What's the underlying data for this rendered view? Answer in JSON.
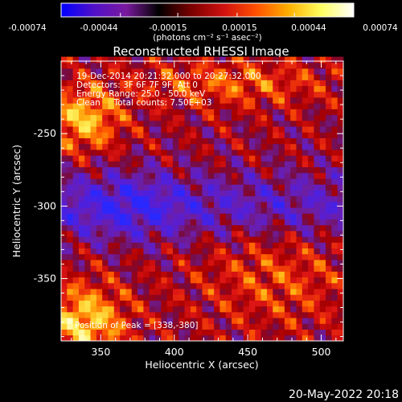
{
  "colorbar": {
    "tick_labels": [
      "-0.00074",
      "-0.00044",
      "-0.00015",
      "0.00015",
      "0.00044",
      "0.00074"
    ],
    "tick_values": [
      -0.00074,
      -0.00044,
      -0.00015,
      0.00015,
      0.00044,
      0.00074
    ],
    "range": [
      -0.00074,
      0.00074
    ],
    "unit_label": "(photons cm⁻² s⁻¹ asec⁻²)",
    "colors": [
      "#0000ff",
      "#5010c8",
      "#7a1a9e",
      "#000000",
      "#7a0000",
      "#d01010",
      "#ff5000",
      "#ffb000",
      "#ffff60",
      "#ffffff"
    ]
  },
  "chart_data": {
    "type": "heatmap",
    "title": "Reconstructed RHESSI Image",
    "xlabel": "Heliocentric X (arcsec)",
    "ylabel": "Heliocentric Y (arcsec)",
    "xlim": [
      323,
      515
    ],
    "ylim": [
      -393,
      -200
    ],
    "x_ticks": [
      350,
      400,
      450,
      500
    ],
    "y_ticks": [
      -250,
      -300,
      -350
    ],
    "x_tick_labels": [
      "350",
      "400",
      "450",
      "500"
    ],
    "y_tick_labels": [
      "-250",
      "-300",
      "-350"
    ],
    "annotations": [
      "19-Dec-2014 20:21:32.000 to 20:27:32.000",
      "Detectors: 3F 6F 7F 9F, Att 0",
      "Energy Range: 25.0 - 50.0 keV",
      "Clean     Total counts: 7.50E+03"
    ],
    "peak_label": "Position of Peak = [338,-380]",
    "peak": [
      338,
      -380
    ]
  },
  "footer": {
    "timestamp": "20-May-2022 20:18"
  }
}
